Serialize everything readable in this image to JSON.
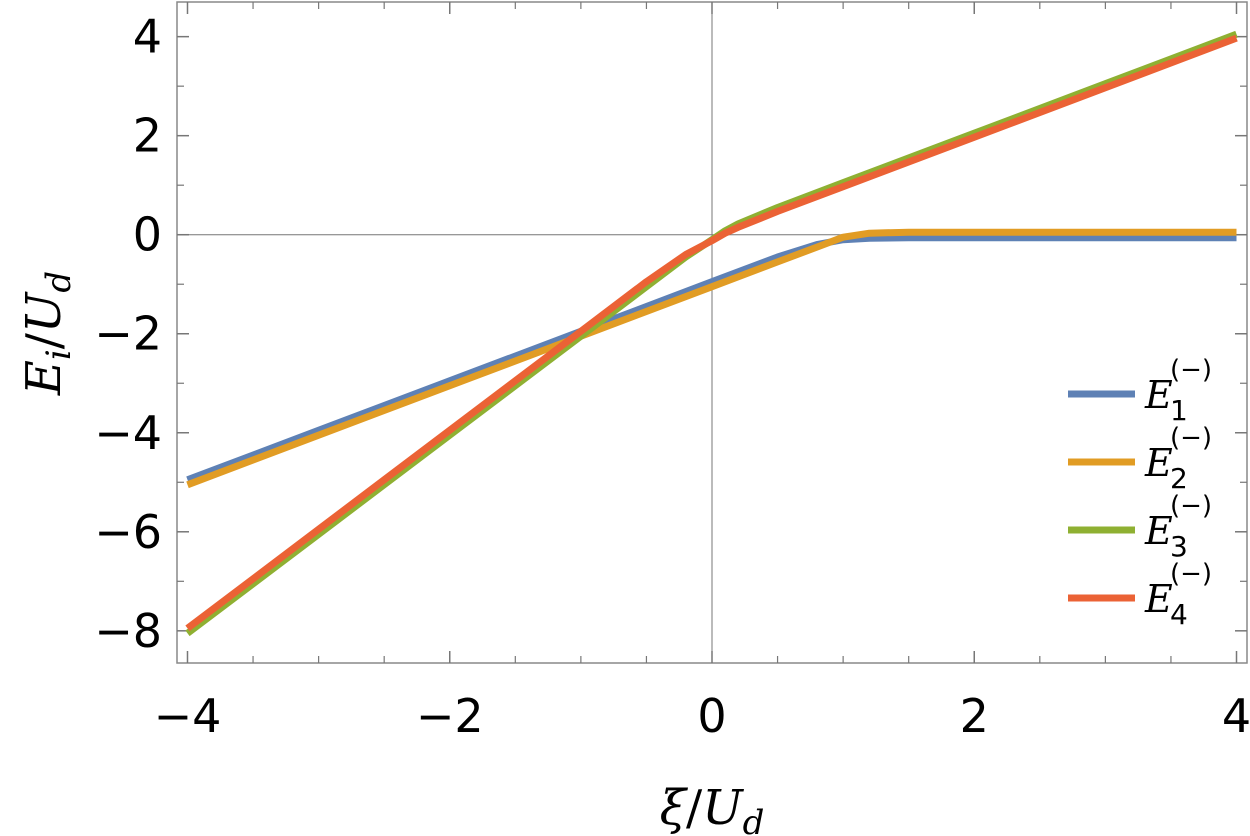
{
  "chart_data": {
    "type": "line",
    "xlabel": {
      "base": "ξ",
      "slash": "/",
      "unit": "U",
      "unit_sub": "d"
    },
    "ylabel": {
      "base": "E",
      "base_sub": "i",
      "slash": "/",
      "unit": "U",
      "unit_sub": "d"
    },
    "xlim": [
      -4.08,
      4.08
    ],
    "ylim": [
      -8.65,
      4.7
    ],
    "x_ticks": [
      -4,
      -2,
      0,
      2,
      4
    ],
    "x_tick_labels": [
      "−4",
      "−2",
      "0",
      "2",
      "4"
    ],
    "y_ticks": [
      -8,
      -6,
      -4,
      -2,
      0,
      2,
      4
    ],
    "y_tick_labels": [
      "−8",
      "−6",
      "−4",
      "−2",
      "0",
      "2",
      "4"
    ],
    "grid": false,
    "frame": true,
    "legend_position": "bottom-right",
    "series": [
      {
        "name": "E₁⁽⁻⁾",
        "legend_base": "E",
        "legend_sub": "1",
        "legend_sup": "(−)",
        "color": "#5E81B5",
        "x": [
          -4,
          -3,
          -2,
          -1,
          0,
          0.5,
          0.8,
          1.0,
          1.2,
          1.5,
          2,
          3,
          4
        ],
        "y": [
          -4.95,
          -3.95,
          -2.95,
          -1.95,
          -0.95,
          -0.45,
          -0.2,
          -0.1,
          -0.07,
          -0.06,
          -0.06,
          -0.06,
          -0.06
        ]
      },
      {
        "name": "E₂⁽⁻⁾",
        "legend_base": "E",
        "legend_sub": "2",
        "legend_sup": "(−)",
        "color": "#E19C24",
        "x": [
          -4,
          -3,
          -2,
          -1,
          0,
          0.5,
          0.8,
          1.0,
          1.2,
          1.5,
          2,
          3,
          4
        ],
        "y": [
          -5.05,
          -4.05,
          -3.05,
          -2.05,
          -1.05,
          -0.55,
          -0.25,
          -0.05,
          0.03,
          0.05,
          0.05,
          0.05,
          0.05
        ]
      },
      {
        "name": "E₃⁽⁻⁾",
        "legend_base": "E",
        "legend_sub": "3",
        "legend_sup": "(−)",
        "color": "#8FB032",
        "x": [
          -4,
          -3,
          -2,
          -1,
          -0.5,
          -0.2,
          0,
          0.1,
          0.2,
          0.5,
          1,
          2,
          3,
          4
        ],
        "y": [
          -8.05,
          -6.05,
          -4.05,
          -2.05,
          -1.05,
          -0.45,
          -0.1,
          0.08,
          0.22,
          0.55,
          1.05,
          2.05,
          3.05,
          4.05
        ]
      },
      {
        "name": "E₄⁽⁻⁾",
        "legend_base": "E",
        "legend_sub": "4",
        "legend_sup": "(−)",
        "color": "#EB6235",
        "x": [
          -4,
          -3,
          -2,
          -1,
          -0.5,
          -0.2,
          0,
          0.1,
          0.2,
          0.5,
          1,
          2,
          3,
          4
        ],
        "y": [
          -7.95,
          -5.95,
          -3.95,
          -1.95,
          -0.95,
          -0.4,
          -0.12,
          0.03,
          0.15,
          0.47,
          0.97,
          1.97,
          2.97,
          3.97
        ]
      }
    ]
  }
}
